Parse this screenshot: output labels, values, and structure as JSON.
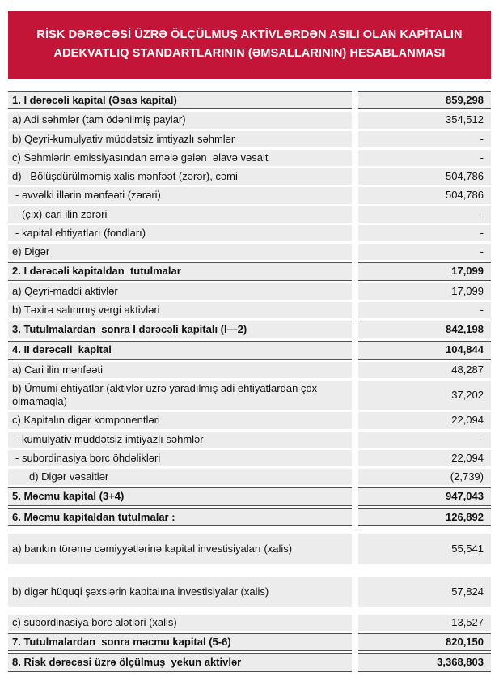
{
  "header": {
    "title_line1": "RİSK DƏRƏCƏSİ ÜZRƏ ÖLÇÜLMUŞ AKTİVLƏRDƏN ASILI OLAN KAPİTALIN",
    "title_line2": "ADEKVATLIQ STANDARTLARININ (ƏMSALLARININ) HESABLANMASI",
    "banner_color": "#C31538",
    "text_color": "#FFFFFF"
  },
  "table": {
    "cell_background": "#ECECEC",
    "total_row_border_color": "#4F4F4F",
    "rows": [
      {
        "label": "1. I dərəcəli kapital (Əsas kapital)",
        "value": "859,298"
      },
      {
        "label": "a) Adi səhmlər (tam ödənilmiş paylar)",
        "value": "354,512"
      },
      {
        "label": "b) Qeyri-kumulyativ müddətsiz imtiyazlı səhmlər",
        "value": "-"
      },
      {
        "label": "c) Səhmlərin emissiyasından əmələ gələn  əlavə vəsait",
        "value": "-"
      },
      {
        "label": "d)   Bölüşdürülməmiş xalis mənfəət (zərər), cəmi",
        "value": "504,786"
      },
      {
        "label": "- əvvəlki illərin mənfəəti (zərəri)",
        "value": "504,786"
      },
      {
        "label": "- (çıx) cari ilin zərəri",
        "value": "-"
      },
      {
        "label": "- kapital ehtiyatları (fondları)",
        "value": "-"
      },
      {
        "label": "e) Digər",
        "value": "-"
      },
      {
        "label": "2. I dərəcəli kapitaldan  tutulmalar",
        "value": "17,099"
      },
      {
        "label": "a) Qeyri-maddi aktivlər",
        "value": "17,099"
      },
      {
        "label": "b) Təxirə salınmış vergi aktivləri",
        "value": "-"
      },
      {
        "label": "3. Tutulmalardan  sonra I dərəcəli kapitalı (I—2)",
        "value": "842,198"
      },
      {
        "label": "4. II dərəcəli  kapital",
        "value": "104,844"
      },
      {
        "label": "a) Cari ilin mənfəəti",
        "value": "48,287"
      },
      {
        "label": "b) Ümumi ehtiyatlar (aktivlər üzrə yaradılmış adi ehtiyatlardan çox olmamaqla)",
        "value": "37,202"
      },
      {
        "label": "c) Kapitalın digər komponentləri",
        "value": "22,094"
      },
      {
        "label": "- kumulyativ müddətsiz imtiyazlı səhmlər",
        "value": "-"
      },
      {
        "label": "- subordinasiya borc öhdəlikləri",
        "value": "22,094"
      },
      {
        "label": "d) Digər vəsaitlər",
        "value": "(2,739)"
      },
      {
        "label": "5. Məcmu kapital (3+4)",
        "value": "947,043"
      },
      {
        "label": "6. Məcmu kapitaldan tutulmalar :",
        "value": "126,892"
      },
      {
        "label": "a) bankın törəmə cəmiyyətlərinə kapital investisiyaları (xalis)",
        "value": "55,541"
      },
      {
        "label": "b) digər hüquqi şəxslərin kapitalına investisiyalar (xalis)",
        "value": "57,824"
      },
      {
        "label": "c) subordinasiya borc alətləri (xalis)",
        "value": "13,527"
      },
      {
        "label": "7. Tutulmalardan  sonra məcmu kapital (5-6)",
        "value": "820,150"
      },
      {
        "label": "8. Risk dərəcəsi üzrə ölçülmuş  yekun aktivlər",
        "value": "3,368,803"
      }
    ]
  }
}
